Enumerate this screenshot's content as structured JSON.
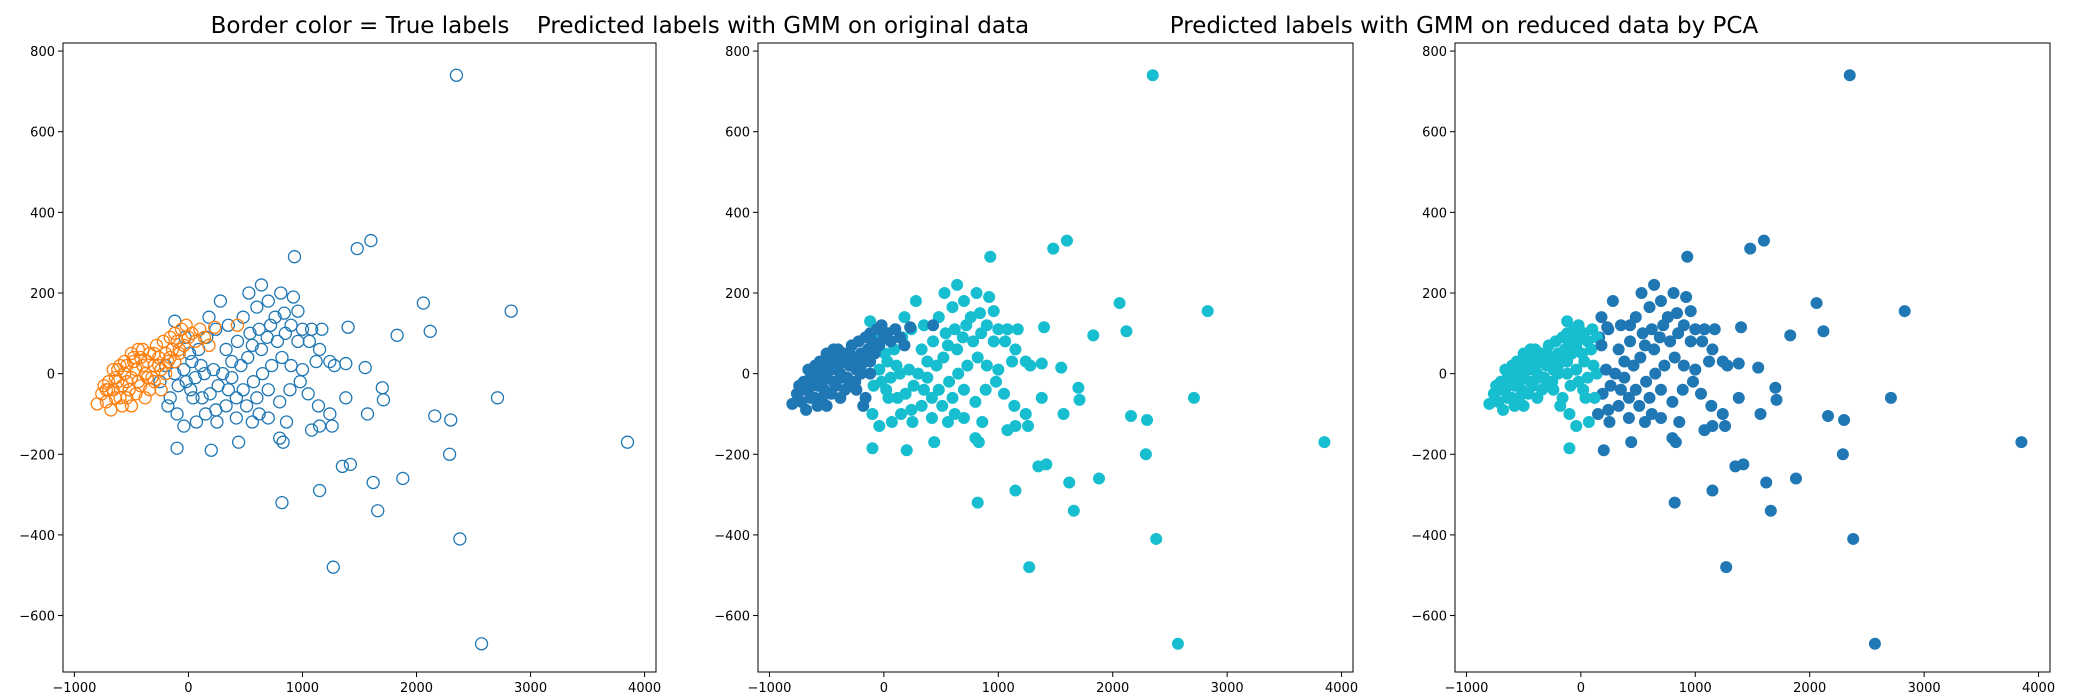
{
  "colors": {
    "true_a": "#1f77b4",
    "true_b": "#ff7f0e",
    "pred_a": "#1f77b4",
    "pred_b": "#17becf"
  },
  "chart_data": [
    {
      "type": "scatter",
      "title": "Border color = True labels",
      "marker": "hollow",
      "xlim": [
        -1100,
        4100
      ],
      "ylim": [
        -740,
        820
      ],
      "xticks": [
        -1000,
        0,
        1000,
        2000,
        3000,
        4000
      ],
      "yticks": [
        -600,
        -400,
        -200,
        0,
        200,
        400,
        600,
        800
      ]
    },
    {
      "type": "scatter",
      "title": "Predicted labels with GMM on original data",
      "marker": "filled",
      "xlim": [
        -1100,
        4100
      ],
      "ylim": [
        -740,
        820
      ],
      "xticks": [
        -1000,
        0,
        1000,
        2000,
        3000,
        4000
      ],
      "yticks": [
        -600,
        -400,
        -200,
        0,
        200,
        400,
        600,
        800
      ]
    },
    {
      "type": "scatter",
      "title": "Predicted labels with GMM on reduced data by PCA",
      "marker": "filled",
      "xlim": [
        -1100,
        4100
      ],
      "ylim": [
        -740,
        820
      ],
      "xticks": [
        -1000,
        0,
        1000,
        2000,
        3000,
        4000
      ],
      "yticks": [
        -600,
        -400,
        -200,
        0,
        200,
        400,
        600,
        800
      ]
    }
  ],
  "points": [
    [
      2350,
      740,
      1
    ],
    [
      1600,
      330,
      1
    ],
    [
      1480,
      310,
      1
    ],
    [
      930,
      290,
      1
    ],
    [
      2830,
      155,
      1
    ],
    [
      2060,
      175,
      1
    ],
    [
      2120,
      105,
      1
    ],
    [
      1830,
      95,
      1
    ],
    [
      1400,
      115,
      1
    ],
    [
      1380,
      25,
      1
    ],
    [
      1550,
      15,
      1
    ],
    [
      1700,
      -35,
      1
    ],
    [
      1710,
      -65,
      1
    ],
    [
      1570,
      -100,
      1
    ],
    [
      2160,
      -105,
      1
    ],
    [
      2300,
      -115,
      1
    ],
    [
      2290,
      -200,
      1
    ],
    [
      1880,
      -260,
      1
    ],
    [
      1420,
      -225,
      1
    ],
    [
      1350,
      -230,
      1
    ],
    [
      1620,
      -270,
      1
    ],
    [
      1150,
      -290,
      1
    ],
    [
      1660,
      -340,
      1
    ],
    [
      820,
      -320,
      1
    ],
    [
      2380,
      -410,
      1
    ],
    [
      1270,
      -480,
      1
    ],
    [
      2570,
      -670,
      1
    ],
    [
      3850,
      -170,
      1
    ],
    [
      2710,
      -60,
      1
    ],
    [
      280,
      180,
      1
    ],
    [
      530,
      200,
      1
    ],
    [
      640,
      220,
      1
    ],
    [
      700,
      180,
      1
    ],
    [
      810,
      200,
      1
    ],
    [
      920,
      190,
      1
    ],
    [
      600,
      165,
      1
    ],
    [
      960,
      155,
      1
    ],
    [
      840,
      150,
      1
    ],
    [
      760,
      140,
      1
    ],
    [
      480,
      140,
      1
    ],
    [
      1000,
      110,
      1
    ],
    [
      1080,
      110,
      1
    ],
    [
      1170,
      110,
      1
    ],
    [
      900,
      120,
      1
    ],
    [
      720,
      120,
      1
    ],
    [
      620,
      110,
      1
    ],
    [
      540,
      100,
      1
    ],
    [
      430,
      80,
      1
    ],
    [
      330,
      60,
      1
    ],
    [
      380,
      30,
      1
    ],
    [
      460,
      20,
      1
    ],
    [
      520,
      40,
      1
    ],
    [
      560,
      70,
      1
    ],
    [
      640,
      60,
      1
    ],
    [
      690,
      90,
      1
    ],
    [
      780,
      80,
      1
    ],
    [
      850,
      100,
      1
    ],
    [
      960,
      80,
      1
    ],
    [
      1060,
      80,
      1
    ],
    [
      1150,
      60,
      1
    ],
    [
      1240,
      30,
      1
    ],
    [
      1280,
      20,
      1
    ],
    [
      1120,
      30,
      1
    ],
    [
      1000,
      10,
      1
    ],
    [
      900,
      20,
      1
    ],
    [
      820,
      40,
      1
    ],
    [
      730,
      20,
      1
    ],
    [
      650,
      0,
      1
    ],
    [
      570,
      -20,
      1
    ],
    [
      480,
      -40,
      1
    ],
    [
      420,
      -60,
      1
    ],
    [
      330,
      -80,
      1
    ],
    [
      240,
      -90,
      1
    ],
    [
      150,
      -100,
      1
    ],
    [
      70,
      -120,
      1
    ],
    [
      -40,
      -130,
      1
    ],
    [
      -100,
      -100,
      1
    ],
    [
      -160,
      -60,
      1
    ],
    [
      -90,
      -30,
      1
    ],
    [
      -20,
      -20,
      1
    ],
    [
      60,
      -10,
      1
    ],
    [
      140,
      0,
      1
    ],
    [
      220,
      10,
      1
    ],
    [
      300,
      0,
      1
    ],
    [
      260,
      -30,
      1
    ],
    [
      190,
      -50,
      1
    ],
    [
      120,
      -60,
      1
    ],
    [
      40,
      -60,
      1
    ],
    [
      350,
      -40,
      1
    ],
    [
      420,
      -110,
      1
    ],
    [
      510,
      -80,
      1
    ],
    [
      600,
      -60,
      1
    ],
    [
      700,
      -40,
      1
    ],
    [
      800,
      -70,
      1
    ],
    [
      890,
      -40,
      1
    ],
    [
      980,
      -20,
      1
    ],
    [
      1050,
      -50,
      1
    ],
    [
      1140,
      -80,
      1
    ],
    [
      1240,
      -100,
      1
    ],
    [
      1380,
      -60,
      1
    ],
    [
      1260,
      -130,
      1
    ],
    [
      1150,
      -130,
      1
    ],
    [
      1080,
      -140,
      1
    ],
    [
      860,
      -120,
      1
    ],
    [
      830,
      -170,
      1
    ],
    [
      800,
      -160,
      1
    ],
    [
      700,
      -110,
      1
    ],
    [
      620,
      -100,
      1
    ],
    [
      440,
      -170,
      1
    ],
    [
      200,
      -190,
      1
    ],
    [
      -100,
      -185,
      1
    ],
    [
      30,
      30,
      1
    ],
    [
      90,
      60,
      1
    ],
    [
      160,
      90,
      1
    ],
    [
      240,
      110,
      1
    ],
    [
      -120,
      130,
      1
    ],
    [
      -30,
      90,
      1
    ],
    [
      10,
      50,
      1
    ],
    [
      110,
      20,
      1
    ],
    [
      380,
      -10,
      1
    ],
    [
      -40,
      10,
      1
    ],
    [
      -120,
      0,
      1
    ],
    [
      -200,
      20,
      1
    ],
    [
      -250,
      -20,
      1
    ],
    [
      180,
      140,
      1
    ],
    [
      350,
      120,
      1
    ],
    [
      -180,
      -80,
      1
    ],
    [
      20,
      -40,
      1
    ],
    [
      250,
      -120,
      1
    ],
    [
      560,
      -120,
      1
    ],
    [
      -800,
      -75,
      0
    ],
    [
      -760,
      -50,
      0
    ],
    [
      -720,
      -70,
      0
    ],
    [
      -740,
      -30,
      0
    ],
    [
      -700,
      -20,
      0
    ],
    [
      -680,
      -90,
      0
    ],
    [
      -660,
      -40,
      0
    ],
    [
      -640,
      -10,
      0
    ],
    [
      -620,
      10,
      0
    ],
    [
      -600,
      -60,
      0
    ],
    [
      -580,
      -30,
      0
    ],
    [
      -560,
      0,
      0
    ],
    [
      -540,
      20,
      0
    ],
    [
      -520,
      -40,
      0
    ],
    [
      -500,
      -10,
      0
    ],
    [
      -480,
      30,
      0
    ],
    [
      -460,
      10,
      0
    ],
    [
      -440,
      -20,
      0
    ],
    [
      -420,
      40,
      0
    ],
    [
      -400,
      60,
      0
    ],
    [
      -380,
      0,
      0
    ],
    [
      -360,
      30,
      0
    ],
    [
      -340,
      50,
      0
    ],
    [
      -320,
      -10,
      0
    ],
    [
      -300,
      20,
      0
    ],
    [
      -280,
      70,
      0
    ],
    [
      -260,
      40,
      0
    ],
    [
      -240,
      10,
      0
    ],
    [
      -220,
      80,
      0
    ],
    [
      -200,
      50,
      0
    ],
    [
      -180,
      30,
      0
    ],
    [
      -160,
      90,
      0
    ],
    [
      -140,
      60,
      0
    ],
    [
      -120,
      100,
      0
    ],
    [
      -100,
      80,
      0
    ],
    [
      -80,
      50,
      0
    ],
    [
      -60,
      110,
      0
    ],
    [
      -40,
      70,
      0
    ],
    [
      -20,
      120,
      0
    ],
    [
      0,
      90,
      0
    ],
    [
      30,
      100,
      0
    ],
    [
      60,
      80,
      0
    ],
    [
      100,
      110,
      0
    ],
    [
      140,
      90,
      0
    ],
    [
      180,
      70,
      0
    ],
    [
      230,
      115,
      0
    ],
    [
      -580,
      -80,
      0
    ],
    [
      -540,
      -60,
      0
    ],
    [
      -500,
      -80,
      0
    ],
    [
      -460,
      -50,
      0
    ],
    [
      -420,
      -30,
      0
    ],
    [
      -380,
      -60,
      0
    ],
    [
      -340,
      -40,
      0
    ],
    [
      -300,
      -20,
      0
    ],
    [
      -620,
      -20,
      0
    ],
    [
      -660,
      10,
      0
    ],
    [
      -700,
      -40,
      0
    ],
    [
      -560,
      30,
      0
    ],
    [
      -480,
      40,
      0
    ],
    [
      -440,
      60,
      0
    ],
    [
      -400,
      20,
      0
    ],
    [
      -360,
      -10,
      0
    ],
    [
      -300,
      50,
      0
    ],
    [
      -260,
      20,
      0
    ],
    [
      -200,
      0,
      0
    ],
    [
      -160,
      40,
      0
    ],
    [
      -120,
      30,
      0
    ],
    [
      -80,
      60,
      0
    ],
    [
      -240,
      -40,
      0
    ],
    [
      -540,
      -20,
      0
    ],
    [
      -600,
      20,
      0
    ],
    [
      -500,
      50,
      0
    ],
    [
      430,
      120,
      0
    ],
    [
      -640,
      -60,
      0
    ],
    [
      -720,
      -40,
      0
    ]
  ]
}
